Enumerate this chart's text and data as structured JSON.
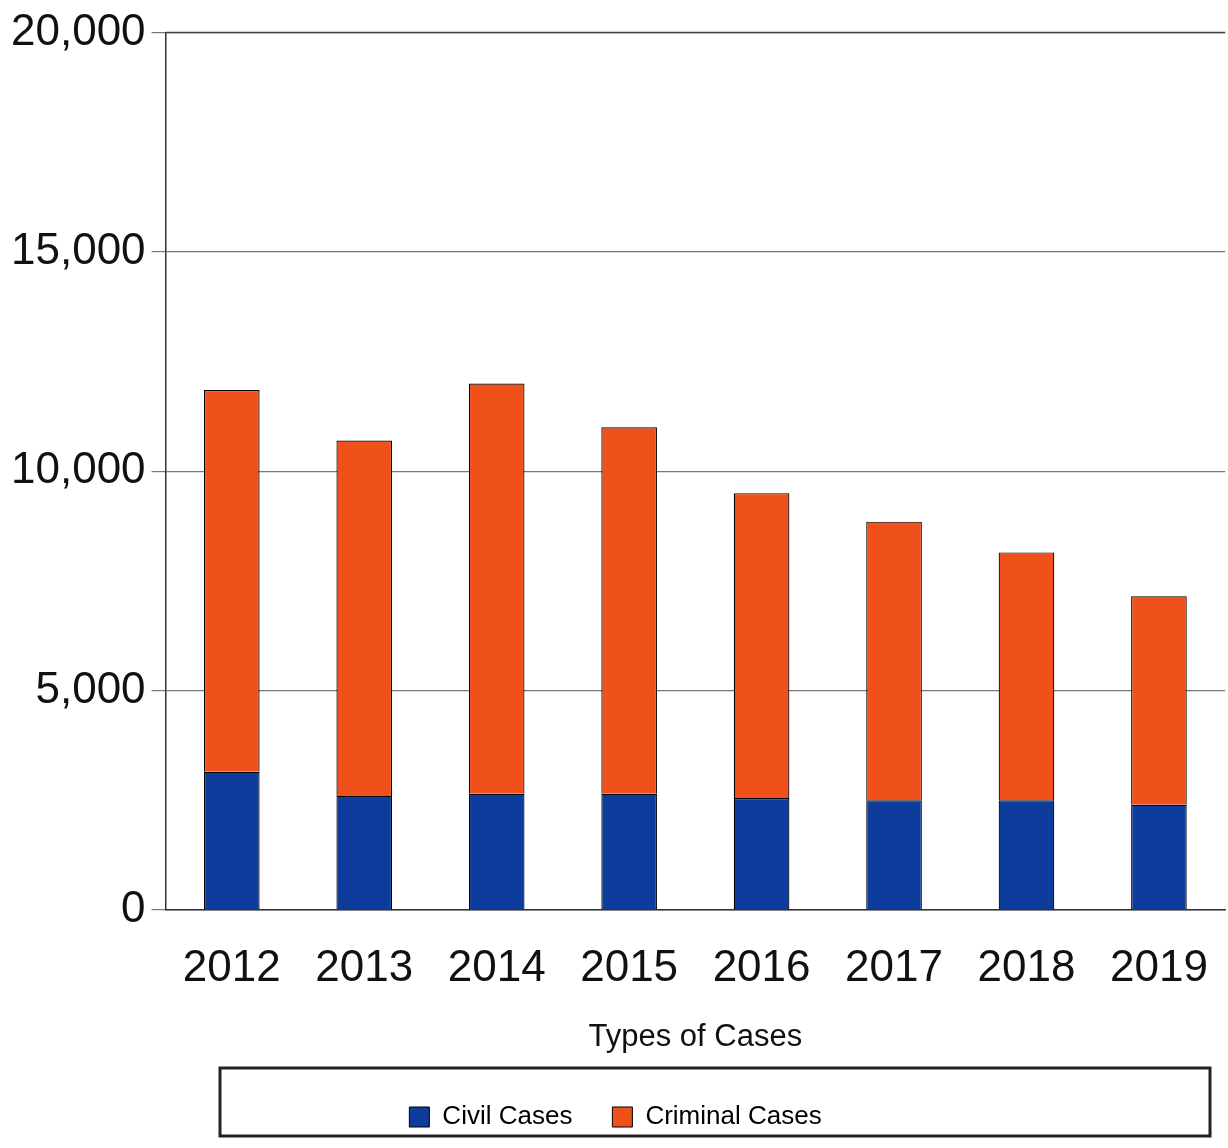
{
  "chart_data": {
    "type": "bar",
    "stacked": true,
    "xlabel": "Types of Cases",
    "categories": [
      "2012",
      "2013",
      "2014",
      "2015",
      "2016",
      "2017",
      "2018",
      "2019"
    ],
    "series": [
      {
        "name": "Civil Cases",
        "color": "#0d3c9c",
        "values": [
          3150,
          2600,
          2650,
          2650,
          2550,
          2500,
          2500,
          2400
        ]
      },
      {
        "name": "Criminal Cases",
        "color": "#f0501a",
        "values": [
          8700,
          8100,
          9350,
          8350,
          6950,
          6350,
          5650,
          4750
        ]
      }
    ],
    "ylim": [
      0,
      20000
    ],
    "yticks": [
      {
        "value": 0,
        "label": "0"
      },
      {
        "value": 5000,
        "label": "5,000"
      },
      {
        "value": 10000,
        "label": "10,000"
      },
      {
        "value": 15000,
        "label": "15,000"
      },
      {
        "value": 20000,
        "label": "20,000"
      }
    ],
    "grid": "y",
    "legend": "bottom"
  }
}
